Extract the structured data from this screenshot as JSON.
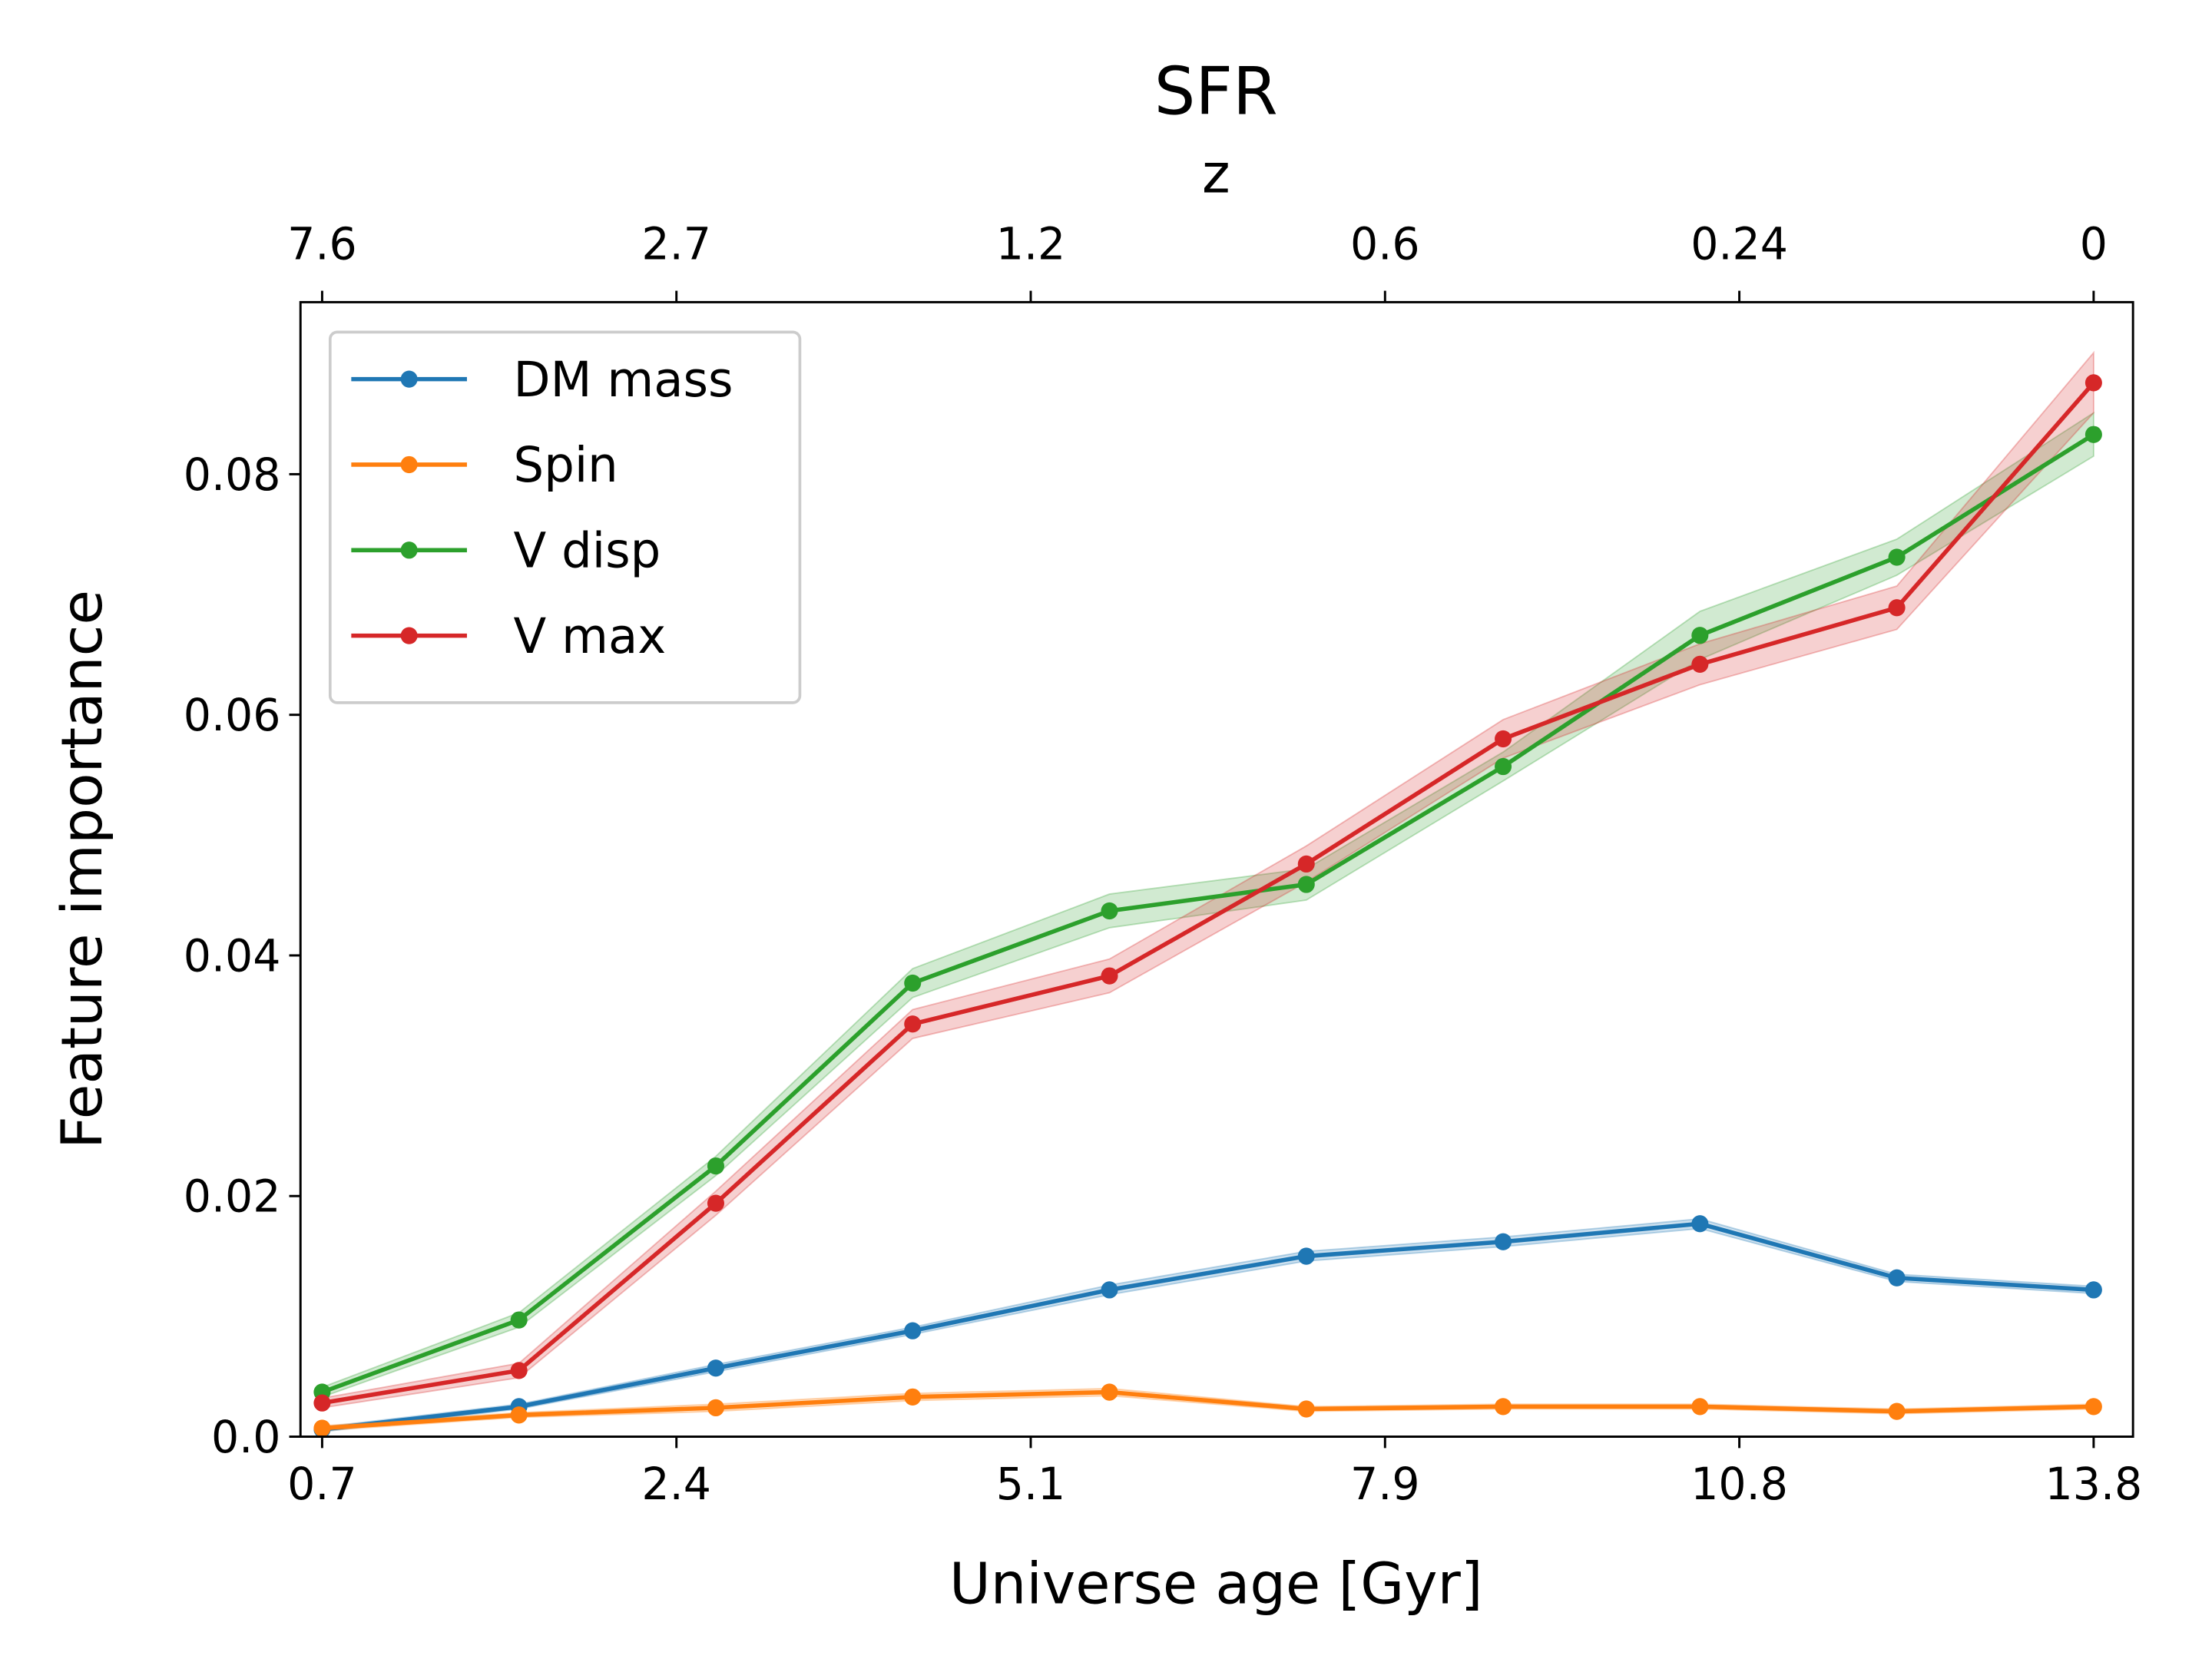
{
  "chart_data": {
    "type": "line",
    "title": "SFR",
    "x2label": "z",
    "xlabel": "Universe age [Gyr]",
    "ylabel": "Feature importance",
    "x": [
      0,
      1,
      2,
      3,
      4,
      5,
      6,
      7,
      8,
      9
    ],
    "xlim": [
      -0.11,
      9.2
    ],
    "xticks": [
      {
        "value": 0,
        "label": "0.7"
      },
      {
        "value": 1.8,
        "label": "2.4"
      },
      {
        "value": 3.6,
        "label": "5.1"
      },
      {
        "value": 5.4,
        "label": "7.9"
      },
      {
        "value": 7.2,
        "label": "10.8"
      },
      {
        "value": 9,
        "label": "13.8"
      }
    ],
    "x2ticks": [
      {
        "value": 0,
        "label": "7.6"
      },
      {
        "value": 1.8,
        "label": "2.7"
      },
      {
        "value": 3.6,
        "label": "1.2"
      },
      {
        "value": 5.4,
        "label": "0.6"
      },
      {
        "value": 7.2,
        "label": "0.24"
      },
      {
        "value": 9,
        "label": "0"
      }
    ],
    "ylim": [
      0,
      0.0943
    ],
    "yticks": [
      {
        "value": 0,
        "label": "0.0"
      },
      0.02,
      0.04,
      0.06,
      0.08
    ],
    "legend": "upper left",
    "series": [
      {
        "name": "DM mass",
        "color": "#1f77b4",
        "values": [
          0.0006,
          0.0025,
          0.0057,
          0.0088,
          0.0122,
          0.015,
          0.0162,
          0.0177,
          0.0132,
          0.0122
        ],
        "errors": [
          0.0002,
          0.0002,
          0.0003,
          0.0003,
          0.0004,
          0.0004,
          0.0004,
          0.0004,
          0.0003,
          0.0003
        ]
      },
      {
        "name": "Spin",
        "color": "#ff7f0e",
        "values": [
          0.0007,
          0.0018,
          0.0024,
          0.0033,
          0.0037,
          0.0023,
          0.0025,
          0.0025,
          0.0021,
          0.0025
        ],
        "errors": [
          0.0002,
          0.0002,
          0.0003,
          0.0003,
          0.0003,
          0.0002,
          0.0002,
          0.0002,
          0.0002,
          0.0002
        ]
      },
      {
        "name": "V disp",
        "color": "#2ca02c",
        "values": [
          0.0037,
          0.0097,
          0.0225,
          0.0377,
          0.0437,
          0.0459,
          0.0557,
          0.0666,
          0.0731,
          0.0833
        ],
        "errors": [
          0.0004,
          0.0006,
          0.0008,
          0.0012,
          0.0014,
          0.0013,
          0.0012,
          0.002,
          0.0015,
          0.0018
        ]
      },
      {
        "name": "V max",
        "color": "#d62728",
        "values": [
          0.0028,
          0.0055,
          0.0194,
          0.0343,
          0.0383,
          0.0476,
          0.058,
          0.0642,
          0.0689,
          0.0876
        ],
        "errors": [
          0.0004,
          0.0006,
          0.001,
          0.0012,
          0.0014,
          0.0015,
          0.0016,
          0.0017,
          0.0018,
          0.0025
        ]
      }
    ]
  }
}
